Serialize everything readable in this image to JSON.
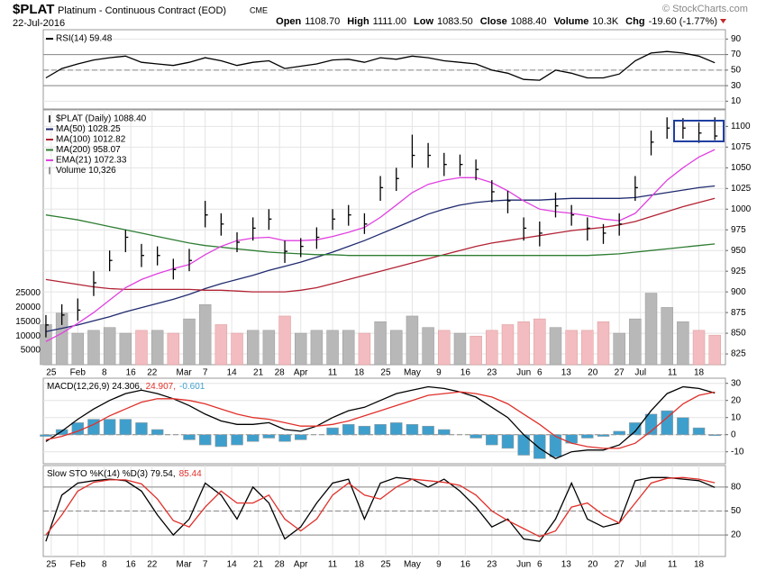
{
  "header": {
    "symbol": "$PLAT",
    "name": "Platinum - Continuous Contract (EOD)",
    "exchange": "CME",
    "date": "22-Jul-2016",
    "watermark": "© StockCharts.com",
    "quote": [
      {
        "label": "Open",
        "value": "1108.70"
      },
      {
        "label": "High",
        "value": "1111.00"
      },
      {
        "label": "Low",
        "value": "1083.50"
      },
      {
        "label": "Close",
        "value": "1088.40"
      },
      {
        "label": "Volume",
        "value": "10.3K"
      },
      {
        "label": "Chg",
        "value": "-19.60 (-1.77%)"
      }
    ]
  },
  "chart_data": [
    {
      "type": "ohlc",
      "label": "$PLAT (Daily) 1088.40",
      "color": "#000000",
      "legend": "top-left",
      "grid": true,
      "x": [
        0,
        3,
        6,
        9,
        12,
        15,
        18,
        21,
        24,
        27,
        30,
        33,
        36,
        39,
        42,
        45,
        48,
        51,
        54,
        57,
        60,
        63,
        66,
        69,
        72,
        75,
        78,
        81,
        84,
        87,
        90,
        93,
        96,
        99,
        102,
        105,
        108,
        111,
        114,
        117,
        120,
        123,
        126
      ],
      "xlim": [
        -0.5,
        128
      ],
      "xticks": [
        {
          "value": 1,
          "label": "25"
        },
        {
          "value": 6,
          "label": "Feb"
        },
        {
          "value": 11,
          "label": "8"
        },
        {
          "value": 16,
          "label": "16"
        },
        {
          "value": 20,
          "label": "22"
        },
        {
          "value": 26,
          "label": "Mar"
        },
        {
          "value": 30,
          "label": "7"
        },
        {
          "value": 35,
          "label": "14"
        },
        {
          "value": 40,
          "label": "21"
        },
        {
          "value": 44,
          "label": "28"
        },
        {
          "value": 48,
          "label": "Apr"
        },
        {
          "value": 54,
          "label": "11"
        },
        {
          "value": 59,
          "label": "18"
        },
        {
          "value": 64,
          "label": "25"
        },
        {
          "value": 69,
          "label": "May"
        },
        {
          "value": 74,
          "label": "9"
        },
        {
          "value": 79,
          "label": "16"
        },
        {
          "value": 84,
          "label": "23"
        },
        {
          "value": 90,
          "label": "Jun"
        },
        {
          "value": 93,
          "label": "6"
        },
        {
          "value": 98,
          "label": "13"
        },
        {
          "value": 103,
          "label": "20"
        },
        {
          "value": 108,
          "label": "27"
        },
        {
          "value": 112,
          "label": "Jul"
        },
        {
          "value": 118,
          "label": "11"
        },
        {
          "value": 123,
          "label": "18"
        }
      ],
      "ylim": [
        812,
        1120
      ],
      "yticks": [
        825,
        850,
        875,
        900,
        925,
        950,
        975,
        1000,
        1025,
        1050,
        1075,
        1100
      ],
      "y2lim": [
        0,
        89000
      ],
      "y2ticks": [
        5000,
        10000,
        15000,
        20000,
        25000
      ],
      "high": [
        872,
        885,
        892,
        925,
        950,
        975,
        958,
        955,
        940,
        952,
        1010,
        995,
        972,
        990,
        1000,
        962,
        965,
        978,
        1000,
        1005,
        995,
        1040,
        1050,
        1090,
        1080,
        1068,
        1066,
        1060,
        1035,
        1022,
        990,
        985,
        1020,
        1005,
        990,
        982,
        995,
        1040,
        1095,
        1111,
        1110,
        1105,
        1111
      ],
      "low": [
        845,
        860,
        865,
        895,
        925,
        948,
        930,
        932,
        915,
        925,
        978,
        968,
        948,
        962,
        975,
        935,
        942,
        952,
        975,
        980,
        970,
        1010,
        1022,
        1050,
        1050,
        1040,
        1040,
        1035,
        1008,
        995,
        962,
        955,
        990,
        980,
        962,
        958,
        968,
        1010,
        1065,
        1085,
        1085,
        1080,
        1083.5
      ],
      "close": [
        860,
        872,
        878,
        911,
        938,
        966,
        944,
        944,
        927,
        938,
        993,
        982,
        960,
        977,
        988,
        949,
        955,
        966,
        988,
        993,
        982,
        1026,
        1037,
        1065,
        1065,
        1054,
        1054,
        1048,
        1021,
        1010,
        977,
        971,
        1004,
        993,
        977,
        971,
        982,
        1026,
        1081,
        1098,
        1098,
        1092,
        1088.4
      ],
      "series": [
        {
          "name": "MA(50) 1028.25",
          "color": "#1f2a6e",
          "draw": "line",
          "values": [
            852,
            856,
            860,
            865,
            870,
            876,
            881,
            886,
            891,
            897,
            904,
            910,
            915,
            920,
            926,
            931,
            936,
            942,
            948,
            955,
            962,
            970,
            978,
            986,
            994,
            1000,
            1005,
            1008,
            1010,
            1011,
            1011,
            1011,
            1012,
            1013,
            1013,
            1013,
            1013,
            1014,
            1017,
            1020,
            1023,
            1026,
            1028
          ]
        },
        {
          "name": "MA(100) 1012.82",
          "color": "#b22234",
          "draw": "line",
          "values": [
            915,
            912,
            909,
            906,
            904,
            903,
            903,
            903,
            903,
            903,
            902,
            902,
            901,
            900,
            900,
            900,
            902,
            905,
            910,
            915,
            920,
            925,
            930,
            935,
            940,
            945,
            950,
            955,
            959,
            962,
            965,
            968,
            971,
            974,
            976,
            978,
            981,
            985,
            991,
            997,
            1003,
            1008,
            1013
          ]
        },
        {
          "name": "MA(200) 958.07",
          "color": "#2e7d32",
          "draw": "line",
          "values": [
            993,
            990,
            987,
            983,
            979,
            975,
            971,
            967,
            963,
            959,
            956,
            954,
            952,
            950,
            948,
            947,
            946,
            945,
            945,
            944,
            944,
            944,
            944,
            944,
            944,
            944,
            944,
            944,
            944,
            944,
            944,
            944,
            944,
            944,
            944,
            945,
            946,
            948,
            950,
            952,
            954,
            956,
            958
          ]
        },
        {
          "name": "EMA(21) 1072.33",
          "color": "#e040e0",
          "draw": "line",
          "values": [
            840,
            850,
            862,
            875,
            890,
            905,
            915,
            922,
            928,
            933,
            945,
            955,
            962,
            965,
            966,
            962,
            962,
            963,
            967,
            972,
            978,
            990,
            1005,
            1020,
            1030,
            1035,
            1038,
            1038,
            1032,
            1022,
            1010,
            1000,
            997,
            995,
            992,
            988,
            986,
            995,
            1015,
            1035,
            1050,
            1063,
            1072
          ]
        },
        {
          "name": "Volume 10,326",
          "color": "#b8b8b8",
          "down_color": "#f2bcc0",
          "draw": "bar",
          "axis": "y2",
          "values": [
            14000,
            18000,
            11000,
            12000,
            13000,
            11000,
            12000,
            12000,
            11000,
            16000,
            21000,
            14000,
            11000,
            12000,
            12000,
            17000,
            11000,
            12000,
            12000,
            12000,
            11000,
            15000,
            12000,
            17000,
            13000,
            12000,
            11000,
            10000,
            12000,
            14000,
            15000,
            16000,
            13000,
            12000,
            12000,
            15000,
            11000,
            16000,
            25000,
            20000,
            15000,
            12000,
            10326
          ]
        }
      ]
    },
    {
      "type": "line",
      "legend": "top-left",
      "grid": true,
      "x": [
        0,
        3,
        6,
        9,
        12,
        15,
        18,
        21,
        24,
        27,
        30,
        33,
        36,
        39,
        42,
        45,
        48,
        51,
        54,
        57,
        60,
        63,
        66,
        69,
        72,
        75,
        78,
        81,
        84,
        87,
        90,
        93,
        96,
        99,
        102,
        105,
        108,
        111,
        114,
        117,
        120,
        123,
        126
      ],
      "xlim": [
        -0.5,
        128
      ],
      "ylim": [
        0,
        102
      ],
      "yticks": [
        10,
        30,
        50,
        70,
        90
      ],
      "levels": [
        {
          "value": 70,
          "style": "solid"
        },
        {
          "value": 50,
          "style": "dashed"
        },
        {
          "value": 30,
          "style": "solid"
        }
      ],
      "series": [
        {
          "name": "RSI(14) 59.48",
          "color": "#000000",
          "draw": "line",
          "values": [
            40,
            52,
            58,
            63,
            66,
            68,
            60,
            58,
            56,
            60,
            66,
            62,
            56,
            60,
            62,
            52,
            55,
            58,
            63,
            64,
            60,
            66,
            64,
            68,
            66,
            62,
            60,
            58,
            50,
            46,
            38,
            37,
            50,
            46,
            40,
            40,
            45,
            62,
            72,
            74,
            72,
            68,
            59.48
          ]
        }
      ]
    },
    {
      "type": "line",
      "legend": "top-left",
      "legend_inline": true,
      "grid": true,
      "x": [
        0,
        3,
        6,
        9,
        12,
        15,
        18,
        21,
        24,
        27,
        30,
        33,
        36,
        39,
        42,
        45,
        48,
        51,
        54,
        57,
        60,
        63,
        66,
        69,
        72,
        75,
        78,
        81,
        84,
        87,
        90,
        93,
        96,
        99,
        102,
        105,
        108,
        111,
        114,
        117,
        120,
        123,
        126
      ],
      "xlim": [
        -0.5,
        128
      ],
      "ylim": [
        -17,
        33
      ],
      "yticks": [
        -10,
        0,
        10,
        20,
        30
      ],
      "levels": [
        {
          "value": 0,
          "style": "dashed"
        }
      ],
      "series": [
        {
          "name": "MACD(12,26,9) 24.306,",
          "color": "#000000",
          "draw": "line",
          "values": [
            -4,
            2,
            9,
            15,
            20,
            24,
            26,
            24,
            21,
            17,
            12,
            8,
            6,
            6,
            7,
            3,
            2,
            5,
            10,
            14,
            16,
            20,
            24,
            26,
            28,
            27,
            25,
            22,
            16,
            10,
            0,
            -8,
            -14,
            -10,
            -9,
            -9,
            -6,
            2,
            14,
            24,
            28,
            27,
            24.306
          ]
        },
        {
          "name": "24.907,",
          "color": "#e0302a",
          "draw": "line",
          "values": [
            -3,
            -1,
            2,
            6,
            11,
            15,
            19,
            21,
            21,
            20,
            18,
            15,
            12,
            10,
            9,
            7,
            5,
            5,
            6,
            8,
            11,
            14,
            17,
            20,
            23,
            24,
            25,
            24,
            22,
            18,
            12,
            6,
            -1,
            -5,
            -7,
            -8,
            -8,
            -5,
            2,
            10,
            18,
            23,
            24.907
          ]
        },
        {
          "name": "-0.601",
          "color": "#3f9fcc",
          "draw": "bar",
          "values": [
            -1,
            3,
            7,
            9,
            9,
            9,
            7,
            3,
            0,
            -3,
            -6,
            -7,
            -6,
            -4,
            -2,
            -4,
            -3,
            0,
            4,
            6,
            5,
            6,
            7,
            6,
            5,
            3,
            0,
            -2,
            -6,
            -8,
            -12,
            -14,
            -13,
            -5,
            -2,
            -1,
            2,
            7,
            12,
            14,
            10,
            4,
            -0.601
          ]
        }
      ]
    },
    {
      "type": "line",
      "legend": "top-left",
      "legend_inline": true,
      "grid": true,
      "x": [
        0,
        3,
        6,
        9,
        12,
        15,
        18,
        21,
        24,
        27,
        30,
        33,
        36,
        39,
        42,
        45,
        48,
        51,
        54,
        57,
        60,
        63,
        66,
        69,
        72,
        75,
        78,
        81,
        84,
        87,
        90,
        93,
        96,
        99,
        102,
        105,
        108,
        111,
        114,
        117,
        120,
        123,
        126
      ],
      "xlim": [
        -0.5,
        128
      ],
      "xticks": [
        {
          "value": 1,
          "label": "25"
        },
        {
          "value": 6,
          "label": "Feb"
        },
        {
          "value": 11,
          "label": "8"
        },
        {
          "value": 16,
          "label": "16"
        },
        {
          "value": 20,
          "label": "22"
        },
        {
          "value": 26,
          "label": "Mar"
        },
        {
          "value": 30,
          "label": "7"
        },
        {
          "value": 35,
          "label": "14"
        },
        {
          "value": 40,
          "label": "21"
        },
        {
          "value": 44,
          "label": "28"
        },
        {
          "value": 48,
          "label": "Apr"
        },
        {
          "value": 54,
          "label": "11"
        },
        {
          "value": 59,
          "label": "18"
        },
        {
          "value": 64,
          "label": "25"
        },
        {
          "value": 69,
          "label": "May"
        },
        {
          "value": 74,
          "label": "9"
        },
        {
          "value": 79,
          "label": "16"
        },
        {
          "value": 84,
          "label": "23"
        },
        {
          "value": 90,
          "label": "Jun"
        },
        {
          "value": 93,
          "label": "6"
        },
        {
          "value": 98,
          "label": "13"
        },
        {
          "value": 103,
          "label": "20"
        },
        {
          "value": 108,
          "label": "27"
        },
        {
          "value": 112,
          "label": "Jul"
        },
        {
          "value": 118,
          "label": "11"
        },
        {
          "value": 123,
          "label": "18"
        }
      ],
      "ylim": [
        -7,
        107
      ],
      "yticks": [
        20,
        50,
        80
      ],
      "levels": [
        {
          "value": 80,
          "style": "solid"
        },
        {
          "value": 50,
          "style": "dashed"
        },
        {
          "value": 20,
          "style": "solid"
        }
      ],
      "series": [
        {
          "name": "Slow STO %K(14) %D(3) 79.54,",
          "color": "#000000",
          "draw": "line",
          "values": [
            12,
            70,
            85,
            88,
            90,
            88,
            75,
            45,
            20,
            40,
            85,
            70,
            40,
            80,
            60,
            15,
            30,
            60,
            85,
            90,
            40,
            85,
            92,
            90,
            80,
            90,
            75,
            55,
            30,
            40,
            15,
            12,
            40,
            85,
            40,
            30,
            35,
            88,
            92,
            92,
            90,
            88,
            79.54
          ]
        },
        {
          "name": "85.44",
          "color": "#e0302a",
          "draw": "line",
          "values": [
            20,
            45,
            75,
            86,
            89,
            89,
            84,
            65,
            38,
            30,
            55,
            75,
            60,
            60,
            70,
            40,
            25,
            40,
            70,
            85,
            70,
            65,
            80,
            90,
            88,
            86,
            82,
            70,
            50,
            38,
            28,
            18,
            25,
            55,
            60,
            45,
            35,
            60,
            85,
            91,
            92,
            90,
            85.44
          ]
        }
      ]
    }
  ]
}
